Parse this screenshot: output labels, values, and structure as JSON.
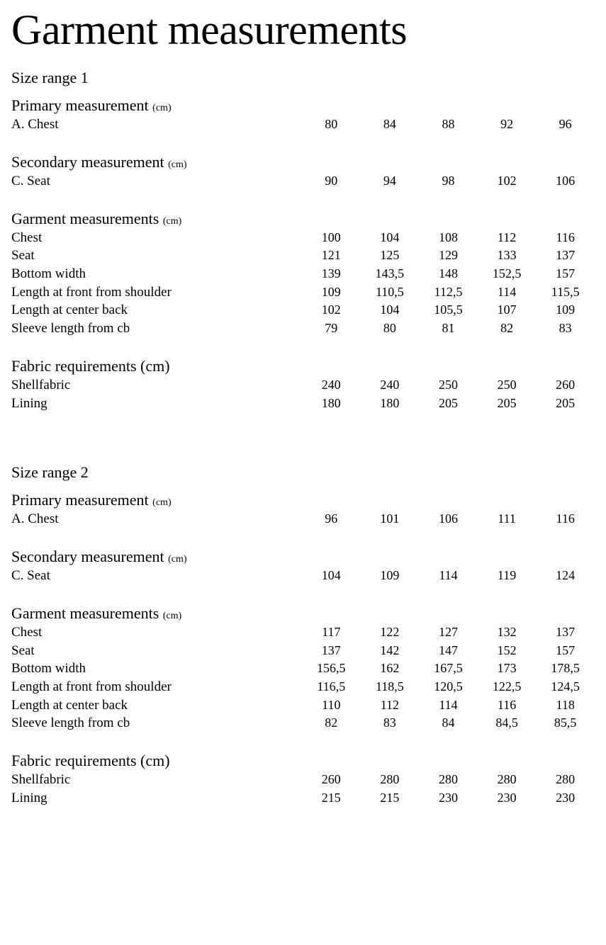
{
  "title": "Garment measurements",
  "unit_suffix": "(cm)",
  "ranges": [
    {
      "range_title": "Size range 1",
      "sections": [
        {
          "title": "Primary measurement",
          "show_unit": true,
          "rows": [
            {
              "label": "A. Chest",
              "values": [
                "80",
                "84",
                "88",
                "92",
                "96"
              ]
            }
          ]
        },
        {
          "title": "Secondary measurement",
          "show_unit": true,
          "rows": [
            {
              "label": "C. Seat",
              "values": [
                "90",
                "94",
                "98",
                "102",
                "106"
              ]
            }
          ]
        },
        {
          "title": "Garment measurements",
          "show_unit": true,
          "rows": [
            {
              "label": "Chest",
              "values": [
                "100",
                "104",
                "108",
                "112",
                "116"
              ]
            },
            {
              "label": "Seat",
              "values": [
                "121",
                "125",
                "129",
                "133",
                "137"
              ]
            },
            {
              "label": "Bottom width",
              "values": [
                "139",
                "143,5",
                "148",
                "152,5",
                "157"
              ]
            },
            {
              "label": "Length at front from shoulder",
              "values": [
                "109",
                "110,5",
                "112,5",
                "114",
                "115,5"
              ]
            },
            {
              "label": "Length at center back",
              "values": [
                "102",
                "104",
                "105,5",
                "107",
                "109"
              ]
            },
            {
              "label": "Sleeve length from cb",
              "values": [
                "79",
                "80",
                "81",
                "82",
                "83"
              ]
            }
          ]
        },
        {
          "title": "Fabric requirements (cm)",
          "show_unit": false,
          "rows": [
            {
              "label": "Shellfabric",
              "values": [
                "240",
                "240",
                "250",
                "250",
                "260"
              ]
            },
            {
              "label": "Lining",
              "values": [
                "180",
                "180",
                "205",
                "205",
                "205"
              ]
            }
          ]
        }
      ]
    },
    {
      "range_title": "Size range 2",
      "sections": [
        {
          "title": "Primary measurement",
          "show_unit": true,
          "rows": [
            {
              "label": "A. Chest",
              "values": [
                "96",
                "101",
                "106",
                "111",
                "116"
              ]
            }
          ]
        },
        {
          "title": "Secondary measurement",
          "show_unit": true,
          "rows": [
            {
              "label": "C. Seat",
              "values": [
                "104",
                "109",
                "114",
                "119",
                "124"
              ]
            }
          ]
        },
        {
          "title": "Garment measurements",
          "show_unit": true,
          "rows": [
            {
              "label": "Chest",
              "values": [
                "117",
                "122",
                "127",
                "132",
                "137"
              ]
            },
            {
              "label": "Seat",
              "values": [
                "137",
                "142",
                "147",
                "152",
                "157"
              ]
            },
            {
              "label": "Bottom width",
              "values": [
                "156,5",
                "162",
                "167,5",
                "173",
                "178,5"
              ]
            },
            {
              "label": "Length at front from shoulder",
              "values": [
                "116,5",
                "118,5",
                "120,5",
                "122,5",
                "124,5"
              ]
            },
            {
              "label": "Length at center back",
              "values": [
                "110",
                "112",
                "114",
                "116",
                "118"
              ]
            },
            {
              "label": "Sleeve length from cb",
              "values": [
                "82",
                "83",
                "84",
                "84,5",
                "85,5"
              ]
            }
          ]
        },
        {
          "title": "Fabric requirements (cm)",
          "show_unit": false,
          "rows": [
            {
              "label": "Shellfabric",
              "values": [
                "260",
                "280",
                "280",
                "280",
                "280"
              ]
            },
            {
              "label": "Lining",
              "values": [
                "215",
                "215",
                "230",
                "230",
                "230"
              ]
            }
          ]
        }
      ]
    }
  ]
}
